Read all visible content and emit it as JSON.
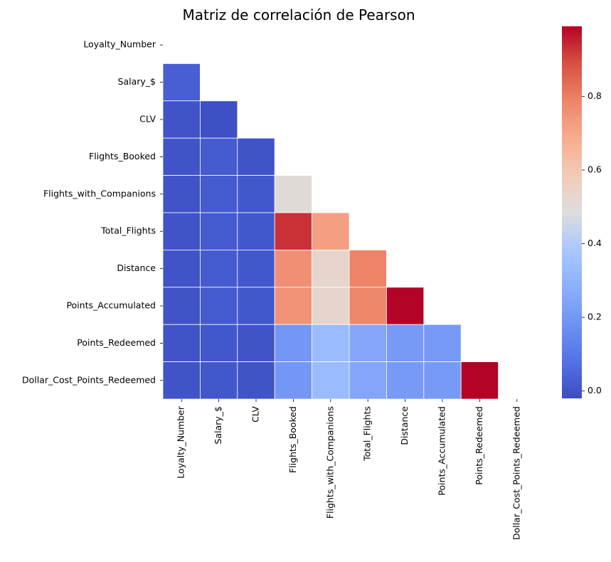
{
  "chart_data": {
    "type": "heatmap",
    "title": "Matriz de correlación de Pearson",
    "xlabel": "",
    "ylabel": "",
    "mask": "upper-triangle-and-diagonal",
    "colormap": "coolwarm",
    "cell_border_color": "#ffffff",
    "variables": [
      "Loyalty_Number",
      "Salary_$",
      "CLV",
      "Flights_Booked",
      "Flights_with_Companions",
      "Total_Flights",
      "Distance",
      "Points_Accumulated",
      "Points_Redeemed",
      "Dollar_Cost_Points_Redeemed"
    ],
    "values": [
      [
        null,
        null,
        null,
        null,
        null,
        null,
        null,
        null,
        null,
        null
      ],
      [
        0.03,
        null,
        null,
        null,
        null,
        null,
        null,
        null,
        null,
        null
      ],
      [
        0.0,
        -0.01,
        null,
        null,
        null,
        null,
        null,
        null,
        null,
        null
      ],
      [
        0.0,
        0.02,
        0.0,
        null,
        null,
        null,
        null,
        null,
        null,
        null
      ],
      [
        0.0,
        0.02,
        0.01,
        0.5,
        null,
        null,
        null,
        null,
        null,
        null
      ],
      [
        0.0,
        0.02,
        0.01,
        0.93,
        0.72,
        null,
        null,
        null,
        null,
        null
      ],
      [
        0.0,
        0.02,
        0.01,
        0.76,
        0.53,
        0.79,
        null,
        null,
        null,
        null
      ],
      [
        0.0,
        0.02,
        0.01,
        0.75,
        0.53,
        0.78,
        0.99,
        null,
        null,
        null
      ],
      [
        0.0,
        0.01,
        0.0,
        0.2,
        0.33,
        0.25,
        0.21,
        0.21,
        null,
        null
      ],
      [
        0.0,
        0.01,
        0.0,
        0.2,
        0.33,
        0.25,
        0.21,
        0.21,
        0.99,
        null
      ]
    ],
    "colorbar": {
      "min": -0.02,
      "max": 0.99,
      "ticks": [
        0.0,
        0.2,
        0.4,
        0.6,
        0.8
      ],
      "tick_labels": [
        "0.0",
        "0.2",
        "0.4",
        "0.6",
        "0.8"
      ]
    }
  }
}
